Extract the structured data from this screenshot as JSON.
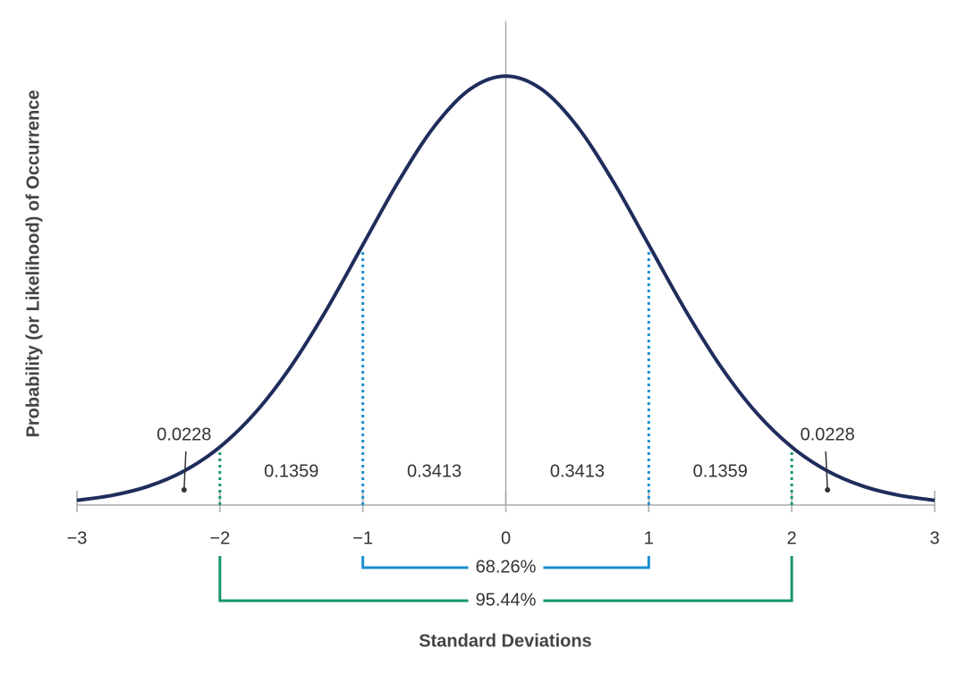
{
  "chart_data": {
    "type": "line",
    "x_label": "Standard Deviations",
    "y_label": "Probability (or Likelihood) of Occurrence",
    "x": [
      -3,
      -2.75,
      -2.5,
      -2.25,
      -2,
      -1.75,
      -1.5,
      -1.25,
      -1,
      -0.75,
      -0.5,
      -0.25,
      0,
      0.25,
      0.5,
      0.75,
      1,
      1.25,
      1.5,
      1.75,
      2,
      2.25,
      2.5,
      2.75,
      3
    ],
    "series": [
      {
        "color": "#1f2d5c",
        "values": [
          0.0044,
          0.0091,
          0.0175,
          0.0317,
          0.054,
          0.0863,
          0.1295,
          0.1826,
          0.242,
          0.3011,
          0.3521,
          0.3867,
          0.3989,
          0.3867,
          0.3521,
          0.3011,
          0.242,
          0.1826,
          0.1295,
          0.0863,
          0.054,
          0.0317,
          0.0175,
          0.0091,
          0.0044
        ]
      }
    ],
    "xlim": [
      -3,
      3
    ],
    "ylim": [
      0,
      0.45
    ],
    "xticks": [
      {
        "value": -3,
        "label": "−3"
      },
      {
        "value": -2,
        "label": "−2"
      },
      {
        "value": -1,
        "label": "−1"
      },
      0,
      1,
      2,
      3
    ],
    "vlines": {
      "x": [
        -2,
        -1,
        1,
        2
      ],
      "colors": [
        "#16966b",
        "#1a8fd0",
        "#1a8fd0",
        "#16966b"
      ]
    },
    "regions": {
      "ranges": [
        [
          -3,
          -2
        ],
        [
          -2,
          -1
        ],
        [
          -1,
          0
        ],
        [
          0,
          1
        ],
        [
          1,
          2
        ],
        [
          2,
          3
        ]
      ],
      "values": [
        0.0228,
        0.1359,
        0.3413,
        0.3413,
        0.1359,
        0.0228
      ]
    },
    "brackets": {
      "ranges": [
        [
          -1,
          1
        ],
        [
          -2,
          2
        ]
      ],
      "values": [
        68.26,
        95.44
      ],
      "value_labels": [
        "68.26%",
        "95.44%"
      ],
      "colors": [
        "#1a8fd0",
        "#16966b"
      ]
    }
  }
}
